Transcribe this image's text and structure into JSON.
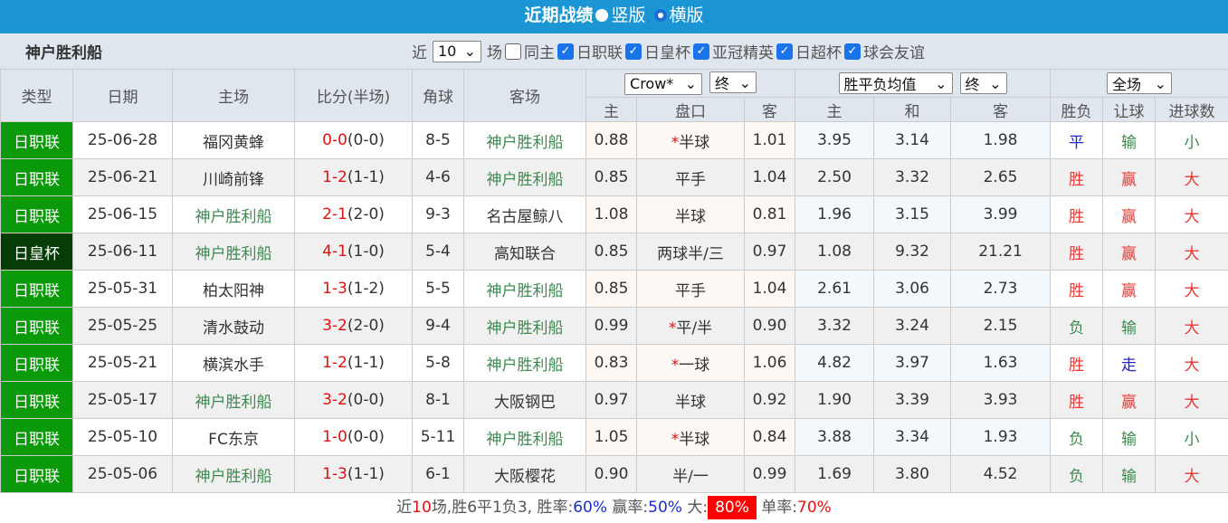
{
  "header": {
    "title": "近期战绩",
    "opt1": "竖版",
    "opt2": "横版"
  },
  "filter": {
    "team": "神户胜利船",
    "near": "近",
    "count": "10",
    "unit": "场",
    "checks": [
      {
        "label": "同主",
        "checked": false
      },
      {
        "label": "日职联",
        "checked": true
      },
      {
        "label": "日皇杯",
        "checked": true
      },
      {
        "label": "亚冠精英",
        "checked": true
      },
      {
        "label": "日超杯",
        "checked": true
      },
      {
        "label": "球会友谊",
        "checked": true
      }
    ]
  },
  "columns": {
    "type": "类型",
    "date": "日期",
    "home": "主场",
    "score": "比分(半场)",
    "corner": "角球",
    "away": "客场",
    "company": "Crow*",
    "odds_stage": "终",
    "eu_type": "胜平负均值",
    "eu_stage": "终",
    "period": "全场",
    "ah_home": "主",
    "ah_line": "盘口",
    "ah_away": "客",
    "eu_home": "主",
    "eu_draw": "和",
    "eu_away": "客",
    "res": "胜负",
    "hcp": "让球",
    "goals": "进球数"
  },
  "rows": [
    {
      "type": "日职联",
      "date": "25-06-28",
      "home": "福冈黄蜂",
      "score": "0-0",
      "half": "(0-0)",
      "corner": "8-5",
      "away": "神户胜利船",
      "ah_h": "0.88",
      "star": "*",
      "line": "半球",
      "ah_a": "1.01",
      "eh": "3.95",
      "ed": "3.14",
      "ea": "1.98",
      "res": "平",
      "hcp": "输",
      "goals": "小"
    },
    {
      "type": "日职联",
      "date": "25-06-21",
      "home": "川崎前锋",
      "score": "1-2",
      "half": "(1-1)",
      "corner": "4-6",
      "away": "神户胜利船",
      "ah_h": "0.85",
      "star": "",
      "line": "平手",
      "ah_a": "1.04",
      "eh": "2.50",
      "ed": "3.32",
      "ea": "2.65",
      "res": "胜",
      "hcp": "赢",
      "goals": "大"
    },
    {
      "type": "日职联",
      "date": "25-06-15",
      "home": "神户胜利船",
      "score": "2-1",
      "half": "(2-0)",
      "corner": "9-3",
      "away": "名古屋鲸八",
      "ah_h": "1.08",
      "star": "",
      "line": "半球",
      "ah_a": "0.81",
      "eh": "1.96",
      "ed": "3.15",
      "ea": "3.99",
      "res": "胜",
      "hcp": "赢",
      "goals": "大"
    },
    {
      "type": "日皇杯",
      "date": "25-06-11",
      "home": "神户胜利船",
      "score": "4-1",
      "half": "(1-0)",
      "corner": "5-4",
      "away": "高知联合",
      "ah_h": "0.85",
      "star": "",
      "line": "两球半/三",
      "ah_a": "0.97",
      "eh": "1.08",
      "ed": "9.32",
      "ea": "21.21",
      "res": "胜",
      "hcp": "赢",
      "goals": "大"
    },
    {
      "type": "日职联",
      "date": "25-05-31",
      "home": "柏太阳神",
      "score": "1-3",
      "half": "(1-2)",
      "corner": "5-5",
      "away": "神户胜利船",
      "ah_h": "0.85",
      "star": "",
      "line": "平手",
      "ah_a": "1.04",
      "eh": "2.61",
      "ed": "3.06",
      "ea": "2.73",
      "res": "胜",
      "hcp": "赢",
      "goals": "大"
    },
    {
      "type": "日职联",
      "date": "25-05-25",
      "home": "清水鼓动",
      "score": "3-2",
      "half": "(2-0)",
      "corner": "9-4",
      "away": "神户胜利船",
      "ah_h": "0.99",
      "star": "*",
      "line": "平/半",
      "ah_a": "0.90",
      "eh": "3.32",
      "ed": "3.24",
      "ea": "2.15",
      "res": "负",
      "hcp": "输",
      "goals": "大"
    },
    {
      "type": "日职联",
      "date": "25-05-21",
      "home": "横滨水手",
      "score": "1-2",
      "half": "(1-1)",
      "corner": "5-8",
      "away": "神户胜利船",
      "ah_h": "0.83",
      "star": "*",
      "line": "一球",
      "ah_a": "1.06",
      "eh": "4.82",
      "ed": "3.97",
      "ea": "1.63",
      "res": "胜",
      "hcp": "走",
      "goals": "大"
    },
    {
      "type": "日职联",
      "date": "25-05-17",
      "home": "神户胜利船",
      "score": "3-2",
      "half": "(0-0)",
      "corner": "8-1",
      "away": "大阪钢巴",
      "ah_h": "0.97",
      "star": "",
      "line": "半球",
      "ah_a": "0.92",
      "eh": "1.90",
      "ed": "3.39",
      "ea": "3.93",
      "res": "胜",
      "hcp": "赢",
      "goals": "大"
    },
    {
      "type": "日职联",
      "date": "25-05-10",
      "home": "FC东京",
      "score": "1-0",
      "half": "(0-0)",
      "corner": "5-11",
      "away": "神户胜利船",
      "ah_h": "1.05",
      "star": "*",
      "line": "半球",
      "ah_a": "0.84",
      "eh": "3.88",
      "ed": "3.34",
      "ea": "1.93",
      "res": "负",
      "hcp": "输",
      "goals": "小"
    },
    {
      "type": "日职联",
      "date": "25-05-06",
      "home": "神户胜利船",
      "score": "1-3",
      "half": "(1-1)",
      "corner": "6-1",
      "away": "大阪樱花",
      "ah_h": "0.90",
      "star": "",
      "line": "半/一",
      "ah_a": "0.99",
      "eh": "1.69",
      "ed": "3.80",
      "ea": "4.52",
      "res": "负",
      "hcp": "输",
      "goals": "大"
    }
  ],
  "footer": {
    "p1": "近",
    "n": "10",
    "p2": "场,胜6平1负3, 胜率:",
    "win": "60%",
    "p3": " 赢率:",
    "cover": "50%",
    "p4": " 大:",
    "over": "80%",
    "p5": " 单率:",
    "odd": "70%"
  },
  "colors": {
    "topbar": "#1b95d3",
    "league": "#0a9a0a",
    "cup": "#053d05",
    "win": "#e53935",
    "draw": "#2222cc",
    "lose": "#3b8a4f"
  }
}
